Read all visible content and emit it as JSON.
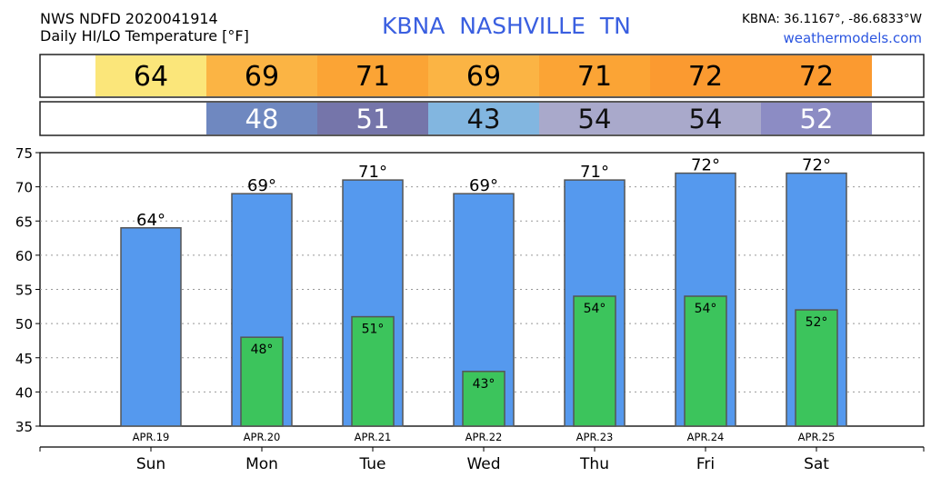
{
  "header": {
    "source": "NWS NDFD 2020041914",
    "subtitle": "Daily HI/LO Temperature [°F]",
    "station": "KBNA   NASHVILLE      TN",
    "coordinates": "KBNA: 36.1167°, -86.6833°W",
    "website": "weathermodels.com"
  },
  "colors": {
    "high_bar": "#5599ee",
    "low_bar": "#3cc45c",
    "bar_edge": "#555555",
    "strip_border": "#222222"
  },
  "table": {
    "high_cells": [
      {
        "text": "64",
        "color": "#fbe67a"
      },
      {
        "text": "69",
        "color": "#fbb444"
      },
      {
        "text": "71",
        "color": "#fba435"
      },
      {
        "text": "69",
        "color": "#fbb444"
      },
      {
        "text": "71",
        "color": "#fba435"
      },
      {
        "text": "72",
        "color": "#fb9a30"
      },
      {
        "text": "72",
        "color": "#fb9a30"
      }
    ],
    "low_cells": [
      {
        "text": "",
        "color": "#ffffff"
      },
      {
        "text": "48",
        "color": "#6f88c0"
      },
      {
        "text": "51",
        "color": "#7575aa"
      },
      {
        "text": "43",
        "color": "#82b6e0"
      },
      {
        "text": "54",
        "color": "#a9a9cb"
      },
      {
        "text": "54",
        "color": "#a9a9cb"
      },
      {
        "text": "52",
        "color": "#8c8cc4"
      }
    ]
  },
  "chart_data": {
    "type": "bar",
    "categories": [
      "Sun",
      "Mon",
      "Tue",
      "Wed",
      "Thu",
      "Fri",
      "Sat"
    ],
    "dates": [
      "APR.19",
      "APR.20",
      "APR.21",
      "APR.22",
      "APR.23",
      "APR.24",
      "APR.25"
    ],
    "series": [
      {
        "values": [
          64,
          69,
          71,
          69,
          71,
          72,
          72
        ]
      },
      {
        "values": [
          null,
          48,
          51,
          43,
          54,
          54,
          52
        ]
      }
    ],
    "high_labels": [
      "64°",
      "69°",
      "71°",
      "69°",
      "71°",
      "72°",
      "72°"
    ],
    "low_labels": [
      "",
      "48°",
      "51°",
      "43°",
      "54°",
      "54°",
      "52°"
    ],
    "ylim": [
      35,
      75
    ],
    "yticks": [
      "35",
      "40",
      "45",
      "50",
      "55",
      "60",
      "65",
      "70",
      "75"
    ],
    "grid": true
  }
}
